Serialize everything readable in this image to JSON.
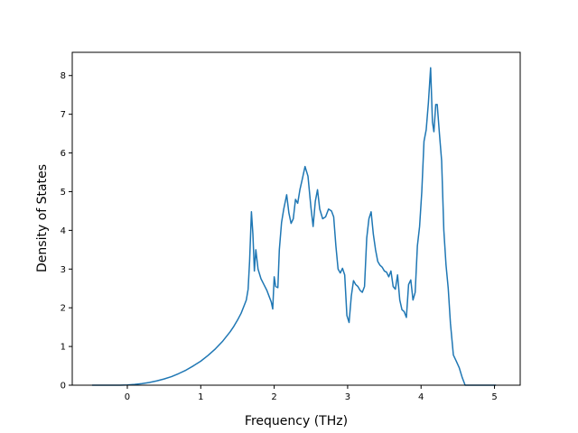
{
  "chart_data": {
    "type": "line",
    "title": "",
    "xlabel": "Frequency (THz)",
    "ylabel": "Density of States",
    "xlim": [
      -0.75,
      5.35
    ],
    "ylim": [
      0,
      8.6
    ],
    "xticks": [
      0,
      1,
      2,
      3,
      4,
      5
    ],
    "yticks": [
      0,
      1,
      2,
      3,
      4,
      5,
      6,
      7,
      8
    ],
    "grid": false,
    "legend": "none",
    "line_color": "#1f77b4",
    "series": [
      {
        "x": [
          -0.48,
          -0.3,
          -0.1,
          0.0,
          0.1,
          0.2,
          0.3,
          0.4,
          0.5,
          0.6,
          0.7,
          0.8,
          0.9,
          1.0,
          1.1,
          1.2,
          1.3,
          1.4,
          1.45,
          1.5,
          1.55,
          1.6,
          1.62,
          1.645,
          1.665,
          1.69,
          1.71,
          1.73,
          1.75,
          1.78,
          1.82,
          1.86,
          1.9,
          1.93,
          1.96,
          1.98,
          2.0,
          2.02,
          2.05,
          2.07,
          2.1,
          2.13,
          2.17,
          2.2,
          2.23,
          2.26,
          2.29,
          2.32,
          2.35,
          2.38,
          2.42,
          2.46,
          2.5,
          2.53,
          2.56,
          2.59,
          2.62,
          2.66,
          2.7,
          2.74,
          2.78,
          2.81,
          2.84,
          2.87,
          2.9,
          2.93,
          2.96,
          2.99,
          3.02,
          3.05,
          3.08,
          3.11,
          3.14,
          3.17,
          3.2,
          3.23,
          3.26,
          3.29,
          3.32,
          3.35,
          3.38,
          3.41,
          3.44,
          3.47,
          3.5,
          3.53,
          3.56,
          3.59,
          3.62,
          3.65,
          3.68,
          3.71,
          3.74,
          3.77,
          3.8,
          3.83,
          3.86,
          3.89,
          3.92,
          3.95,
          3.98,
          4.01,
          4.04,
          4.07,
          4.1,
          4.13,
          4.155,
          4.175,
          4.2,
          4.22,
          4.25,
          4.28,
          4.31,
          4.34,
          4.37,
          4.4,
          4.44,
          4.48,
          4.52,
          4.56,
          4.6,
          4.625,
          4.7,
          4.85,
          5.02
        ],
        "y": [
          0,
          0,
          0,
          0.005,
          0.02,
          0.04,
          0.07,
          0.11,
          0.16,
          0.22,
          0.3,
          0.39,
          0.5,
          0.62,
          0.77,
          0.94,
          1.14,
          1.38,
          1.52,
          1.68,
          1.86,
          2.1,
          2.2,
          2.48,
          3.2,
          4.48,
          3.9,
          2.95,
          3.5,
          3.0,
          2.75,
          2.6,
          2.45,
          2.3,
          2.15,
          1.97,
          2.8,
          2.55,
          2.52,
          3.5,
          4.2,
          4.55,
          4.92,
          4.45,
          4.18,
          4.3,
          4.8,
          4.7,
          5.05,
          5.3,
          5.65,
          5.4,
          4.6,
          4.1,
          4.75,
          5.05,
          4.55,
          4.3,
          4.35,
          4.55,
          4.5,
          4.35,
          3.6,
          3.0,
          2.9,
          3.02,
          2.85,
          1.8,
          1.62,
          2.3,
          2.7,
          2.6,
          2.55,
          2.45,
          2.4,
          2.55,
          3.8,
          4.3,
          4.48,
          3.9,
          3.5,
          3.2,
          3.1,
          3.05,
          2.95,
          2.92,
          2.8,
          2.95,
          2.55,
          2.48,
          2.85,
          2.2,
          1.95,
          1.9,
          1.75,
          2.6,
          2.72,
          2.2,
          2.4,
          3.6,
          4.1,
          5.0,
          6.3,
          6.6,
          7.3,
          8.2,
          6.8,
          6.55,
          7.25,
          7.25,
          6.5,
          5.8,
          4.0,
          3.1,
          2.5,
          1.6,
          0.78,
          0.62,
          0.45,
          0.2,
          0.0,
          0.0,
          0.0,
          0.0,
          0.0
        ]
      }
    ]
  }
}
